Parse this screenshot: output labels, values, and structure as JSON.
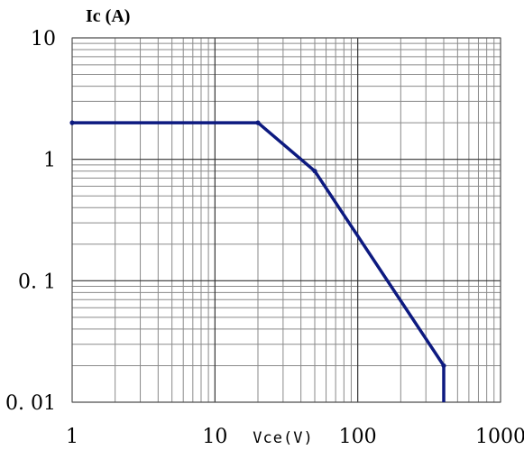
{
  "chart_data": {
    "type": "line",
    "xscale": "log",
    "yscale": "log",
    "xlim": [
      1,
      1000
    ],
    "ylim": [
      0.01,
      10
    ],
    "grid": true,
    "xlabel": "Vce(V)",
    "ylabel": "Ic (A)",
    "xtick_labels": [
      "1",
      "10",
      "100",
      "1000"
    ],
    "ytick_labels": [
      "10",
      "1",
      "0. 1",
      "0. 01"
    ],
    "series": [
      {
        "color": "#0d1a80",
        "x": [
          1,
          20,
          50,
          400,
          400
        ],
        "y": [
          2,
          2,
          0.8,
          0.02,
          0.01
        ]
      }
    ]
  }
}
